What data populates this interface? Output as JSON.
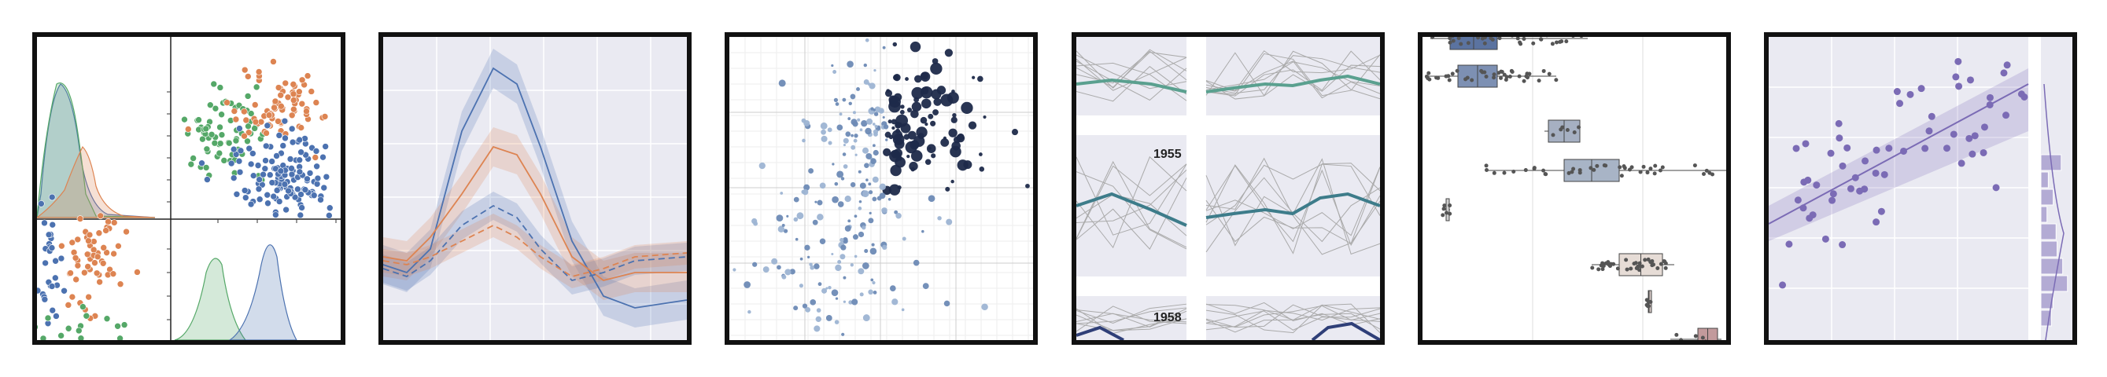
{
  "panels": [
    {
      "kind": "pairplot-scatter-kde",
      "colors": [
        "#4c72b0",
        "#dd8452",
        "#55a868"
      ]
    },
    {
      "kind": "line-with-confidence-bands",
      "colors": [
        "#4c72b0",
        "#dd8452"
      ]
    },
    {
      "kind": "bubble-scatter",
      "colors": [
        "#1e2a4a",
        "#6d8ab5",
        "#9db4d3"
      ]
    },
    {
      "kind": "faceted-line-small-multiples",
      "facet_labels": [
        "1955",
        "1958"
      ],
      "colors": [
        "#5aa08f",
        "#3d7c8a",
        "#2f3f78"
      ]
    },
    {
      "kind": "boxplot-with-strip",
      "colors": [
        "#5b73a0",
        "#7d90b3",
        "#a6b0c2",
        "#a8b4c6",
        "#d0d0d0",
        "#e6dcd6",
        "#d9cbc8",
        "#c29a9c"
      ]
    },
    {
      "kind": "regression-with-marginal-histogram",
      "colors": [
        "#7b6bb5"
      ]
    }
  ]
}
